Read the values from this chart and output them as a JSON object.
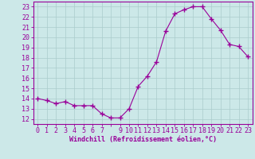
{
  "x": [
    0,
    1,
    2,
    3,
    4,
    5,
    6,
    7,
    8,
    9,
    10,
    11,
    12,
    13,
    14,
    15,
    16,
    17,
    18,
    19,
    20,
    21,
    22,
    23
  ],
  "y": [
    14.0,
    13.8,
    13.5,
    13.7,
    13.3,
    13.3,
    13.3,
    12.5,
    12.1,
    12.1,
    13.0,
    15.2,
    16.2,
    17.6,
    20.6,
    22.3,
    22.7,
    23.0,
    23.0,
    21.8,
    20.7,
    19.3,
    19.1,
    18.1
  ],
  "line_color": "#990099",
  "marker": "+",
  "marker_size": 4,
  "marker_lw": 1.0,
  "bg_color": "#cce8e8",
  "grid_color": "#aacccc",
  "xlabel": "Windchill (Refroidissement éolien,°C)",
  "xlabel_fontsize": 6.0,
  "xtick_labels": [
    "0",
    "1",
    "2",
    "3",
    "4",
    "5",
    "6",
    "7",
    "",
    "9",
    "10",
    "11",
    "12",
    "13",
    "14",
    "15",
    "16",
    "17",
    "18",
    "19",
    "20",
    "21",
    "22",
    "23"
  ],
  "ytick_labels": [
    "12",
    "13",
    "14",
    "15",
    "16",
    "17",
    "18",
    "19",
    "20",
    "21",
    "22",
    "23"
  ],
  "ylim": [
    11.5,
    23.5
  ],
  "xlim": [
    -0.5,
    23.5
  ],
  "tick_fontsize": 6.0,
  "linewidth": 0.8
}
